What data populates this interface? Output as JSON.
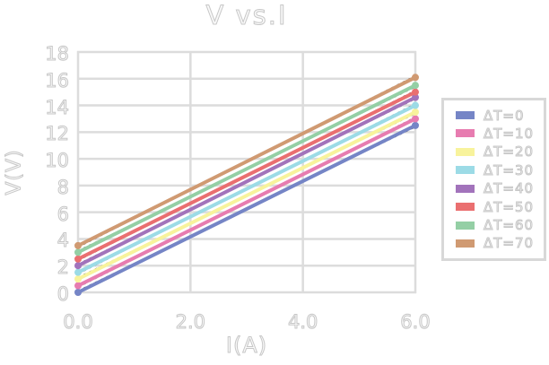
{
  "figure": {
    "title": "V vs.I",
    "xlabel": "I(A)",
    "ylabel": "V(V)"
  },
  "chart_data": {
    "type": "line",
    "title": "V vs.I",
    "xlabel": "I(A)",
    "ylabel": "V(V)",
    "xlim": [
      0,
      6
    ],
    "ylim": [
      0,
      18
    ],
    "grid": true,
    "legend_position": "right-outside",
    "xticks": {
      "values": [
        0,
        2,
        4,
        6
      ],
      "labels": [
        "0.0",
        "2.0",
        "4.0",
        "6.0"
      ]
    },
    "yticks": {
      "values": [
        0,
        2,
        4,
        6,
        8,
        10,
        12,
        14,
        16,
        18
      ],
      "labels": [
        "0",
        "2",
        "4",
        "6",
        "8",
        "10",
        "12",
        "14",
        "16",
        "18"
      ]
    },
    "x": [
      0,
      6
    ],
    "series": [
      {
        "name": "ΔT=0",
        "color": "#7585c6",
        "values": [
          0.0,
          12.5
        ]
      },
      {
        "name": "ΔT=10",
        "color": "#e77cb0",
        "values": [
          0.5,
          13.0
        ]
      },
      {
        "name": "ΔT=20",
        "color": "#f8f39c",
        "values": [
          1.0,
          13.5
        ]
      },
      {
        "name": "ΔT=30",
        "color": "#9cdbe6",
        "values": [
          1.5,
          14.0
        ]
      },
      {
        "name": "ΔT=40",
        "color": "#a273bb",
        "values": [
          2.0,
          14.6
        ]
      },
      {
        "name": "ΔT=50",
        "color": "#ea6f70",
        "values": [
          2.5,
          15.0
        ]
      },
      {
        "name": "ΔT=60",
        "color": "#94cfa5",
        "values": [
          3.0,
          15.5
        ]
      },
      {
        "name": "ΔT=70",
        "color": "#d09a72",
        "values": [
          3.5,
          16.1
        ]
      }
    ],
    "style": {
      "grid_color": "#dcdcdc",
      "hollow_text_color": "#c7c7c7",
      "underlay_line": "black-dotted",
      "marker": "circle-at-endpoints"
    }
  }
}
